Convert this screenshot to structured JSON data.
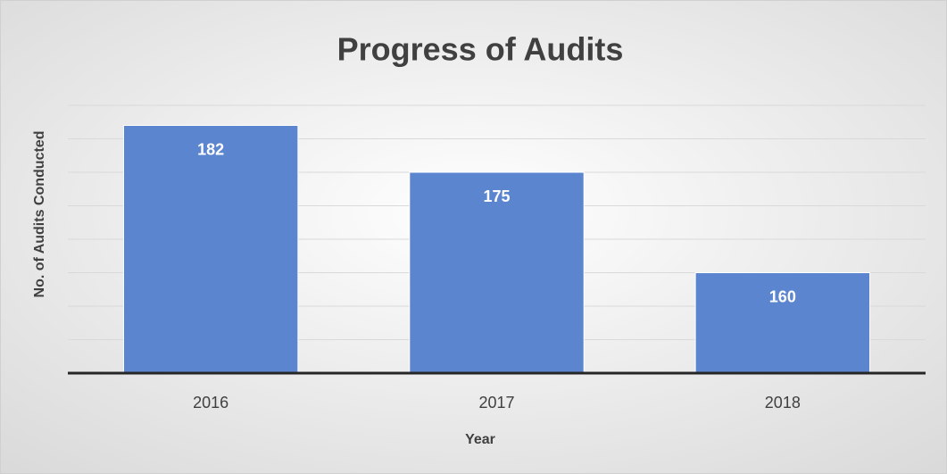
{
  "chart_data": {
    "type": "bar",
    "title": "Progress of Audits",
    "x_label": "Year",
    "y_label": "No. of Audits Conducted",
    "categories": [
      "2016",
      "2017",
      "2018"
    ],
    "values": [
      182,
      175,
      160
    ],
    "color": "#5b85cf",
    "ylim": [
      145,
      185
    ],
    "yticks": [
      145,
      150,
      155,
      160,
      165,
      170,
      175,
      180,
      185
    ],
    "grid": true
  }
}
